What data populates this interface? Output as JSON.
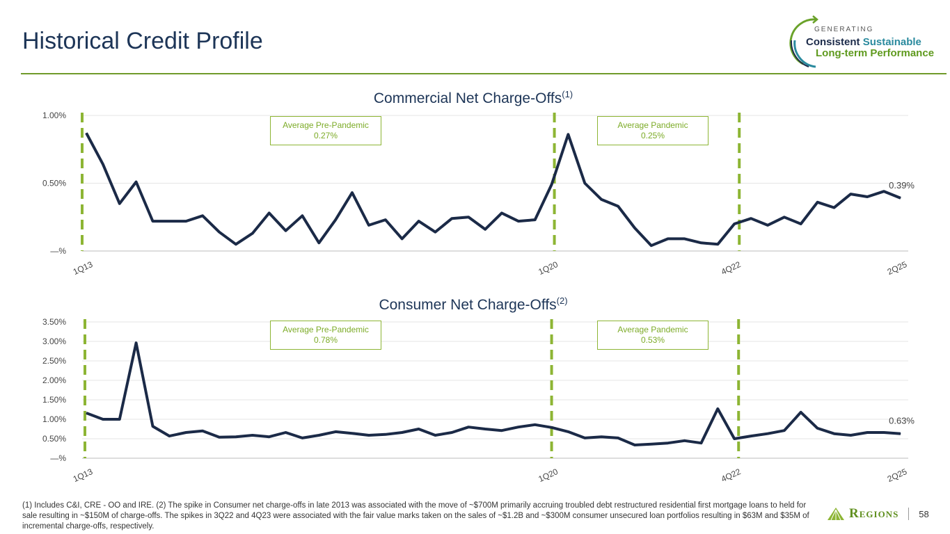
{
  "header": {
    "title": "Historical Credit Profile"
  },
  "logo": {
    "line0": "GENERATING",
    "line1a": "Consistent",
    "line1b": "Sustainable",
    "line2": "Long-term Performance"
  },
  "colors": {
    "line": "#1b2a47",
    "divider": "#8db534",
    "grid": "#e6e6e6"
  },
  "chart_data": [
    {
      "type": "line",
      "title": "Commercial Net Charge-Offs",
      "title_note": "(1)",
      "ylim": [
        0,
        1.0
      ],
      "y_ticks": [
        {
          "value": 0,
          "label": "—%"
        },
        {
          "value": 0.5,
          "label": "0.50%"
        },
        {
          "value": 1.0,
          "label": "1.00%"
        }
      ],
      "x_ticks": [
        {
          "index": 0,
          "label": "1Q13"
        },
        {
          "index": 28,
          "label": "1Q20"
        },
        {
          "index": 39,
          "label": "4Q22"
        },
        {
          "index": 49,
          "label": "2Q25"
        }
      ],
      "dividers": [
        0,
        28,
        39
      ],
      "end_label": "0.39%",
      "annotations": [
        {
          "line1": "Average Pre-Pandemic",
          "line2": "0.27%"
        },
        {
          "line1": "Average Pandemic",
          "line2": "0.25%"
        }
      ],
      "values": [
        0.87,
        0.64,
        0.35,
        0.51,
        0.22,
        0.22,
        0.22,
        0.26,
        0.14,
        0.05,
        0.13,
        0.28,
        0.15,
        0.26,
        0.06,
        0.23,
        0.43,
        0.19,
        0.23,
        0.09,
        0.22,
        0.14,
        0.24,
        0.25,
        0.16,
        0.28,
        0.22,
        0.23,
        0.49,
        0.86,
        0.5,
        0.38,
        0.33,
        0.17,
        0.04,
        0.09,
        0.09,
        0.06,
        0.05,
        0.2,
        0.24,
        0.19,
        0.25,
        0.2,
        0.36,
        0.32,
        0.42,
        0.4,
        0.44,
        0.39
      ]
    },
    {
      "type": "line",
      "title": "Consumer Net Charge-Offs",
      "title_note": "(2)",
      "ylim": [
        0,
        3.5
      ],
      "y_ticks": [
        {
          "value": 0,
          "label": "—%"
        },
        {
          "value": 0.5,
          "label": "0.50%"
        },
        {
          "value": 1.0,
          "label": "1.00%"
        },
        {
          "value": 1.5,
          "label": "1.50%"
        },
        {
          "value": 2.0,
          "label": "2.00%"
        },
        {
          "value": 2.5,
          "label": "2.50%"
        },
        {
          "value": 3.0,
          "label": "3.00%"
        },
        {
          "value": 3.5,
          "label": "3.50%"
        }
      ],
      "x_ticks": [
        {
          "index": 0,
          "label": "1Q13"
        },
        {
          "index": 28,
          "label": "1Q20"
        },
        {
          "index": 39,
          "label": "4Q22"
        },
        {
          "index": 49,
          "label": "2Q25"
        }
      ],
      "dividers": [
        0,
        28,
        39
      ],
      "end_label": "0.63%",
      "annotations": [
        {
          "line1": "Average Pre-Pandemic",
          "line2": "0.78%"
        },
        {
          "line1": "Average Pandemic",
          "line2": "0.53%"
        }
      ],
      "values": [
        1.16,
        1.0,
        1.0,
        2.96,
        0.82,
        0.57,
        0.66,
        0.7,
        0.54,
        0.55,
        0.59,
        0.55,
        0.66,
        0.52,
        0.59,
        0.68,
        0.64,
        0.59,
        0.61,
        0.66,
        0.75,
        0.59,
        0.66,
        0.8,
        0.75,
        0.71,
        0.8,
        0.86,
        0.79,
        0.68,
        0.52,
        0.55,
        0.52,
        0.34,
        0.36,
        0.39,
        0.45,
        0.39,
        1.27,
        0.5,
        0.57,
        0.63,
        0.71,
        1.18,
        0.77,
        0.63,
        0.59,
        0.66,
        0.66,
        0.63
      ]
    }
  ],
  "footer": {
    "text": "(1) Includes C&I, CRE - OO and IRE.  (2) The spike in Consumer net charge-offs in late 2013 was associated with the move of ~$700M primarily accruing troubled debt restructured residential first mortgage loans to held for sale resulting in ~$150M of charge-offs. The spikes in 3Q22 and 4Q23 were associated with the fair value marks taken on the sales of ~$1.2B and ~$300M consumer unsecured loan portfolios resulting in $63M and $35M of incremental charge-offs, respectively.",
    "brand": "Regions",
    "page": "58"
  }
}
